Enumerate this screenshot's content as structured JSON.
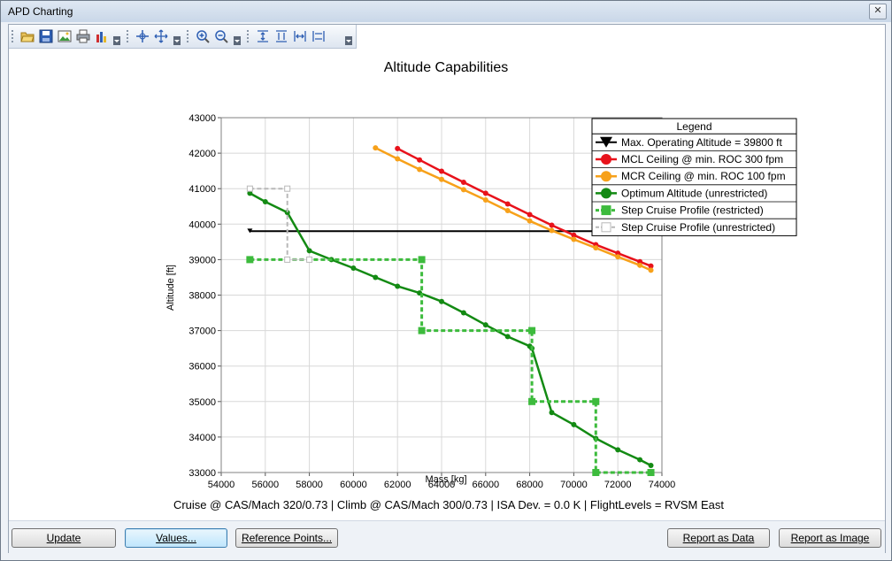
{
  "window": {
    "title": "APD Charting",
    "close_glyph": "✕"
  },
  "toolbar": {
    "icons": [
      "open-folder-icon",
      "save-icon",
      "image-icon",
      "print-icon",
      "chart-bars-icon",
      "pan-icon",
      "move-icon",
      "zoom-in-icon",
      "zoom-out-icon",
      "fit-vertical-icon",
      "fit-vertical-2-icon",
      "fit-horizontal-icon",
      "fit-horizontal-2-icon"
    ]
  },
  "buttons": {
    "update": "Update",
    "values": "Values...",
    "reference_points": "Reference Points...",
    "report_data": "Report as Data",
    "report_image": "Report as Image"
  },
  "chart_data": {
    "type": "line",
    "title": "Altitude Capabilities",
    "xlabel": "Mass [kg]",
    "ylabel": "Altitude [ft]",
    "xlim": [
      54000,
      74000
    ],
    "ylim": [
      33000,
      43000
    ],
    "xticks": [
      54000,
      56000,
      58000,
      60000,
      62000,
      64000,
      66000,
      68000,
      70000,
      72000,
      74000
    ],
    "yticks": [
      33000,
      34000,
      35000,
      36000,
      37000,
      38000,
      39000,
      40000,
      41000,
      42000,
      43000
    ],
    "grid": true,
    "legend_title": "Legend",
    "legend_position": "top-right",
    "footer": "Cruise @ CAS/Mach 320/0.73 | Climb @ CAS/Mach 300/0.73 | ISA Dev. =  0.0 K | FlightLevels = RVSM East",
    "series": [
      {
        "name": "Max. Operating Altitude = 39800 ft",
        "color": "#000000",
        "marker": "triangle",
        "x": [
          55300,
          73500
        ],
        "y": [
          39800,
          39800
        ]
      },
      {
        "name": "MCL Ceiling @ min. ROC 300 fpm",
        "color": "#e8121b",
        "marker": "circle",
        "x": [
          62000,
          63000,
          64000,
          65000,
          66000,
          67000,
          68000,
          69000,
          70000,
          71000,
          72000,
          73000,
          73500
        ],
        "y": [
          42130,
          41810,
          41490,
          41180,
          40870,
          40570,
          40270,
          39970,
          39690,
          39420,
          39180,
          38940,
          38820
        ]
      },
      {
        "name": "MCR Ceiling @ min. ROC 100 fpm",
        "color": "#f7a11a",
        "marker": "circle",
        "x": [
          61000,
          62000,
          63000,
          64000,
          65000,
          66000,
          67000,
          68000,
          69000,
          70000,
          71000,
          72000,
          73000,
          73500
        ],
        "y": [
          42150,
          41840,
          41540,
          41260,
          40970,
          40680,
          40380,
          40090,
          39820,
          39570,
          39330,
          39080,
          38840,
          38700
        ]
      },
      {
        "name": "Optimum Altitude (unrestricted)",
        "color": "#138a13",
        "marker": "circle",
        "x": [
          55300,
          56000,
          57000,
          58000,
          59000,
          60000,
          61000,
          62000,
          63000,
          64000,
          65000,
          66000,
          67000,
          68000,
          68100,
          69000,
          70000,
          71000,
          72000,
          73000,
          73500
        ],
        "y": [
          40870,
          40630,
          40330,
          39250,
          39000,
          38760,
          38500,
          38250,
          38060,
          37820,
          37500,
          37160,
          36830,
          36560,
          36500,
          34690,
          34350,
          33960,
          33640,
          33360,
          33200
        ]
      },
      {
        "name": "Step Cruise Profile (restricted)",
        "color": "#3dbb3d",
        "marker": "square",
        "x": [
          55300,
          63100,
          63100,
          68100,
          68100,
          71000,
          71000,
          73500
        ],
        "y": [
          39000,
          39000,
          37000,
          37000,
          35000,
          35000,
          33000,
          33000
        ]
      },
      {
        "name": "Step Cruise Profile (unrestricted)",
        "color": "#b8b8b8",
        "marker": "square",
        "x": [
          55300,
          57000,
          57000,
          58000
        ],
        "y": [
          41000,
          41000,
          39000,
          39000
        ]
      }
    ]
  }
}
